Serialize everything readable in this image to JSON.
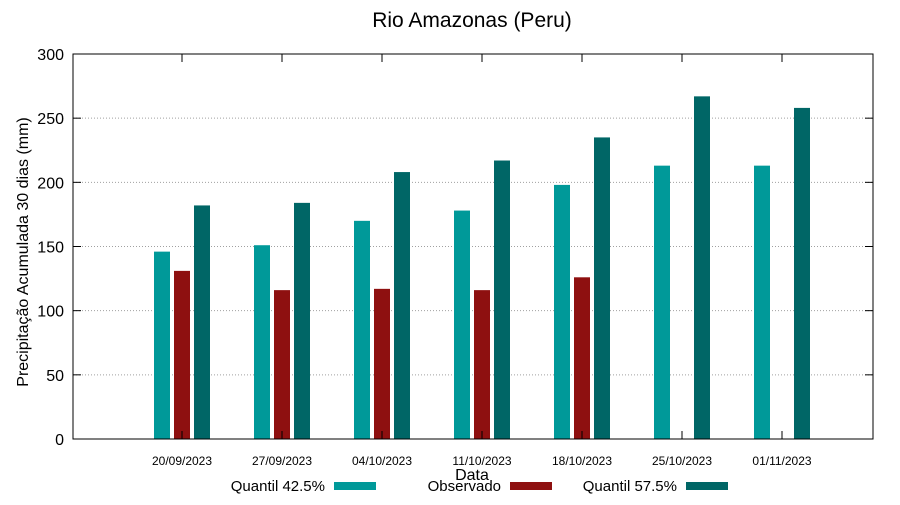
{
  "chart_data": {
    "type": "bar",
    "title": "Rio Amazonas (Peru)",
    "xlabel": "Data",
    "ylabel": "Precipitação Acumulada 30 dias (mm)",
    "ylim": [
      0,
      300
    ],
    "yticks": [
      0,
      50,
      100,
      150,
      200,
      250,
      300
    ],
    "grid": true,
    "legend_position": "bottom",
    "categories": [
      "20/09/2023",
      "27/09/2023",
      "04/10/2023",
      "11/10/2023",
      "18/10/2023",
      "25/10/2023",
      "01/11/2023"
    ],
    "series": [
      {
        "name": "Quantil 42.5%",
        "color": "#009999",
        "values": [
          146,
          151,
          170,
          178,
          198,
          213,
          213
        ]
      },
      {
        "name": "Observado",
        "color": "#8e1010",
        "values": [
          131,
          116,
          117,
          116,
          126,
          null,
          null
        ]
      },
      {
        "name": "Quantil 57.5%",
        "color": "#006666",
        "values": [
          182,
          184,
          208,
          217,
          235,
          267,
          258
        ]
      }
    ]
  }
}
